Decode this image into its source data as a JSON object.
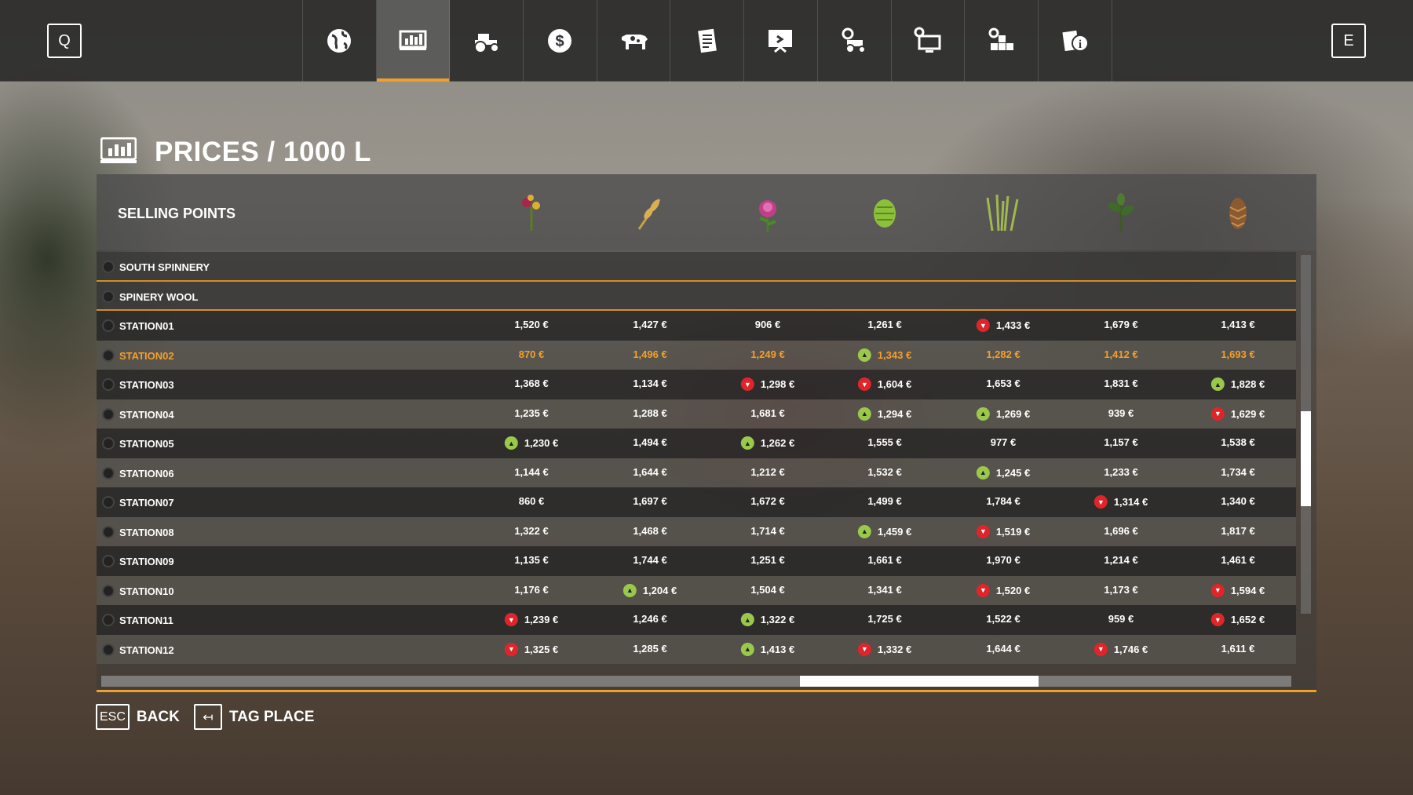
{
  "topbar": {
    "left_key": "Q",
    "right_key": "E",
    "tabs": [
      {
        "icon": "globe-icon",
        "active": false
      },
      {
        "icon": "prices-chart-icon",
        "active": true
      },
      {
        "icon": "tractor-icon",
        "active": false
      },
      {
        "icon": "dollar-icon",
        "active": false
      },
      {
        "icon": "cow-icon",
        "active": false
      },
      {
        "icon": "contracts-icon",
        "active": false
      },
      {
        "icon": "help-board-icon",
        "active": false
      },
      {
        "icon": "vehicle-settings-icon",
        "active": false
      },
      {
        "icon": "monitor-settings-icon",
        "active": false
      },
      {
        "icon": "production-icon",
        "active": false
      },
      {
        "icon": "info-icon",
        "active": false
      }
    ]
  },
  "page": {
    "title": "PRICES / 1000 L",
    "title_icon": "prices-chart-icon"
  },
  "table": {
    "header": "SELLING POINTS",
    "crops": [
      "sunflower-icon",
      "wheat-icon",
      "clover-icon",
      "hops-icon",
      "grass-icon",
      "herb-icon",
      "pinecone-icon"
    ],
    "category_rows": [
      "SOUTH SPINNERY",
      "SPINERY WOOL"
    ],
    "selected_row": "STATION02",
    "rows": [
      {
        "name": "STATION01",
        "prices": [
          "1,520 €",
          "1,427 €",
          "906 €",
          "1,261 €",
          "1,433 €",
          "1,679 €",
          "1,413 €"
        ],
        "trends": [
          "",
          "",
          "",
          "",
          "down",
          "",
          ""
        ]
      },
      {
        "name": "STATION02",
        "prices": [
          "870 €",
          "1,496 €",
          "1,249 €",
          "1,343 €",
          "1,282 €",
          "1,412 €",
          "1,693 €"
        ],
        "trends": [
          "",
          "",
          "",
          "up",
          "",
          "",
          ""
        ]
      },
      {
        "name": "STATION03",
        "prices": [
          "1,368 €",
          "1,134 €",
          "1,298 €",
          "1,604 €",
          "1,653 €",
          "1,831 €",
          "1,828 €"
        ],
        "trends": [
          "",
          "",
          "down",
          "down",
          "",
          "",
          "up"
        ]
      },
      {
        "name": "STATION04",
        "prices": [
          "1,235 €",
          "1,288 €",
          "1,681 €",
          "1,294 €",
          "1,269 €",
          "939 €",
          "1,629 €"
        ],
        "trends": [
          "",
          "",
          "",
          "up",
          "up",
          "",
          "down"
        ]
      },
      {
        "name": "STATION05",
        "prices": [
          "1,230 €",
          "1,494 €",
          "1,262 €",
          "1,555 €",
          "977 €",
          "1,157 €",
          "1,538 €"
        ],
        "trends": [
          "up",
          "",
          "up",
          "",
          "",
          "",
          ""
        ]
      },
      {
        "name": "STATION06",
        "prices": [
          "1,144 €",
          "1,644 €",
          "1,212 €",
          "1,532 €",
          "1,245 €",
          "1,233 €",
          "1,734 €"
        ],
        "trends": [
          "",
          "",
          "",
          "",
          "up",
          "",
          ""
        ]
      },
      {
        "name": "STATION07",
        "prices": [
          "860 €",
          "1,697 €",
          "1,672 €",
          "1,499 €",
          "1,784 €",
          "1,314 €",
          "1,340 €"
        ],
        "trends": [
          "",
          "",
          "",
          "",
          "",
          "down",
          ""
        ]
      },
      {
        "name": "STATION08",
        "prices": [
          "1,322 €",
          "1,468 €",
          "1,714 €",
          "1,459 €",
          "1,519 €",
          "1,696 €",
          "1,817 €"
        ],
        "trends": [
          "",
          "",
          "",
          "up",
          "down",
          "",
          ""
        ]
      },
      {
        "name": "STATION09",
        "prices": [
          "1,135 €",
          "1,744 €",
          "1,251 €",
          "1,661 €",
          "1,970 €",
          "1,214 €",
          "1,461 €"
        ],
        "trends": [
          "",
          "",
          "",
          "",
          "",
          "",
          ""
        ]
      },
      {
        "name": "STATION10",
        "prices": [
          "1,176 €",
          "1,204 €",
          "1,504 €",
          "1,341 €",
          "1,520 €",
          "1,173 €",
          "1,594 €"
        ],
        "trends": [
          "",
          "up",
          "",
          "",
          "down",
          "",
          "down"
        ]
      },
      {
        "name": "STATION11",
        "prices": [
          "1,239 €",
          "1,246 €",
          "1,322 €",
          "1,725 €",
          "1,522 €",
          "959 €",
          "1,652 €"
        ],
        "trends": [
          "down",
          "",
          "up",
          "",
          "",
          "",
          "down"
        ]
      },
      {
        "name": "STATION12",
        "prices": [
          "1,325 €",
          "1,285 €",
          "1,413 €",
          "1,332 €",
          "1,644 €",
          "1,746 €",
          "1,611 €"
        ],
        "trends": [
          "down",
          "",
          "up",
          "down",
          "",
          "down",
          ""
        ]
      }
    ]
  },
  "footer": {
    "back_key": "ESC",
    "back_label": "BACK",
    "tag_key": "↤",
    "tag_label": "TAG PLACE"
  },
  "colors": {
    "accent": "#f0a028",
    "trend_up": "#9ac84a",
    "trend_down": "#e0252a"
  }
}
